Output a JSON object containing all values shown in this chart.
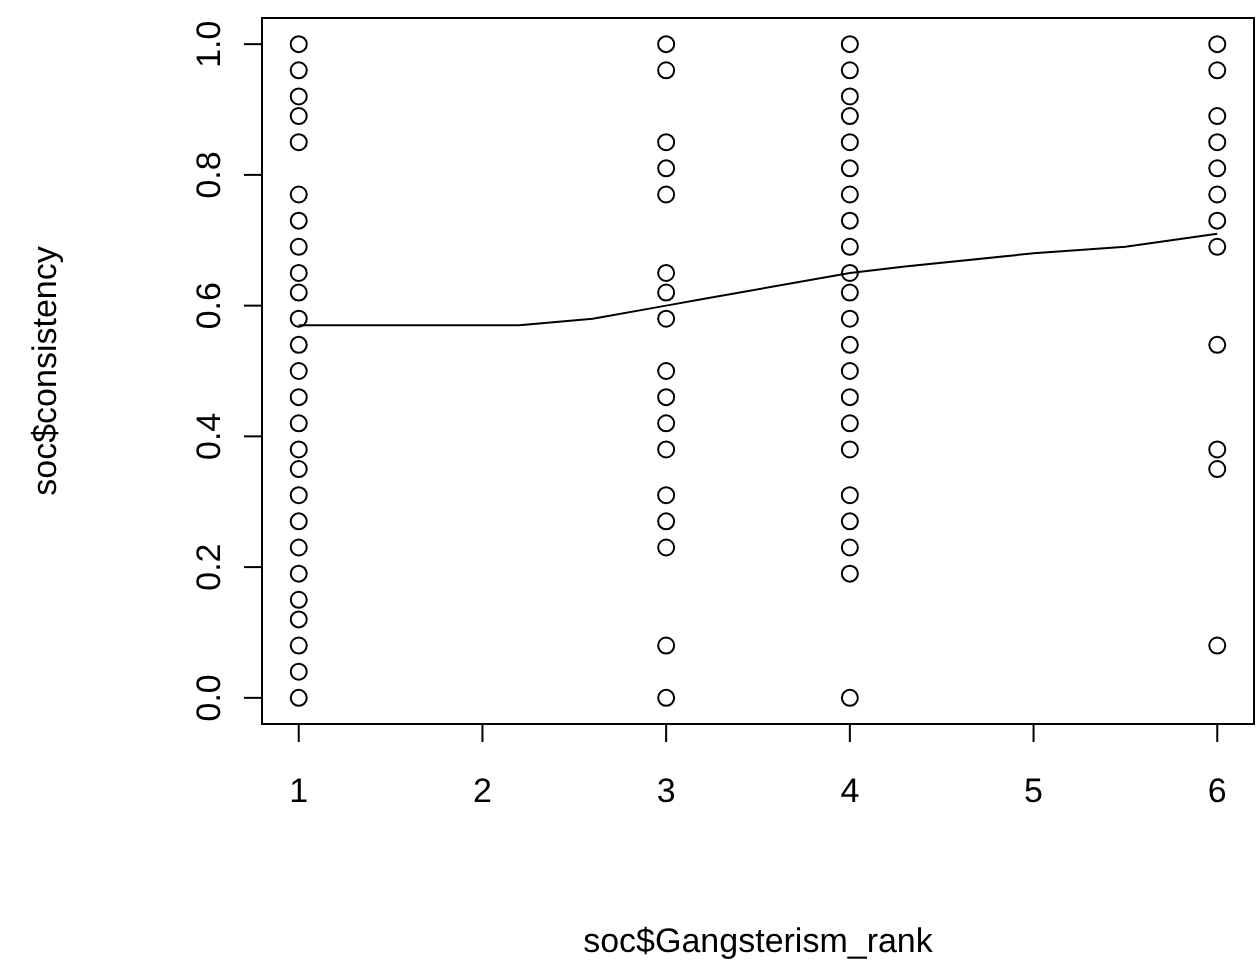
{
  "chart_data": {
    "type": "scatter",
    "xlabel": "soc$Gangsterism_rank",
    "ylabel": "soc$consistency",
    "xlim": [
      0.8,
      6.2
    ],
    "ylim": [
      -0.04,
      1.04
    ],
    "xticks": [
      1,
      2,
      3,
      4,
      5,
      6
    ],
    "yticks": [
      {
        "value": 0,
        "label": "0.0"
      },
      {
        "value": 0.2,
        "label": "0.2"
      },
      {
        "value": 0.4,
        "label": "0.4"
      },
      {
        "value": 0.6,
        "label": "0.6"
      },
      {
        "value": 0.8,
        "label": "0.8"
      },
      {
        "value": 1,
        "label": "1.0"
      }
    ],
    "series": [
      {
        "color": "#000000",
        "marker": "circle",
        "x": [
          1,
          1,
          1,
          1,
          1,
          1,
          1,
          1,
          1,
          1,
          1,
          1,
          1,
          1,
          1,
          1,
          1,
          1,
          1,
          1,
          1,
          1,
          1,
          1,
          1,
          1,
          3,
          3,
          3,
          3,
          3,
          3,
          3,
          3,
          3,
          3,
          3,
          3,
          3,
          3,
          3,
          3,
          3,
          4,
          4,
          4,
          4,
          4,
          4,
          4,
          4,
          4,
          4,
          4,
          4,
          4,
          4,
          4,
          4,
          4,
          4,
          4,
          4,
          4,
          4,
          6,
          6,
          6,
          6,
          6,
          6,
          6,
          6,
          6,
          6,
          6,
          6
        ],
        "values": [
          1,
          0.96,
          0.92,
          0.89,
          0.85,
          0.77,
          0.73,
          0.69,
          0.65,
          0.62,
          0.58,
          0.54,
          0.5,
          0.46,
          0.42,
          0.38,
          0.35,
          0.31,
          0.27,
          0.23,
          0.19,
          0.15,
          0.12,
          0.08,
          0.04,
          0,
          1,
          0.96,
          0.85,
          0.81,
          0.77,
          0.65,
          0.62,
          0.58,
          0.5,
          0.46,
          0.42,
          0.38,
          0.31,
          0.27,
          0.23,
          0.08,
          0,
          1,
          0.96,
          0.92,
          0.89,
          0.85,
          0.81,
          0.77,
          0.73,
          0.69,
          0.65,
          0.62,
          0.58,
          0.54,
          0.5,
          0.46,
          0.42,
          0.38,
          0.31,
          0.27,
          0.23,
          0.19,
          0,
          1,
          0.96,
          0.89,
          0.85,
          0.81,
          0.77,
          0.73,
          0.69,
          0.54,
          0.38,
          0.35,
          0.08
        ]
      },
      {
        "type": "line",
        "color": "#000000",
        "marker": "none",
        "x": [
          1,
          1.6,
          2.2,
          2.6,
          3,
          3.2,
          4,
          4.3,
          5,
          5.5,
          6
        ],
        "values": [
          0.57,
          0.57,
          0.57,
          0.58,
          0.6,
          0.61,
          0.65,
          0.66,
          0.68,
          0.69,
          0.71
        ]
      }
    ]
  }
}
